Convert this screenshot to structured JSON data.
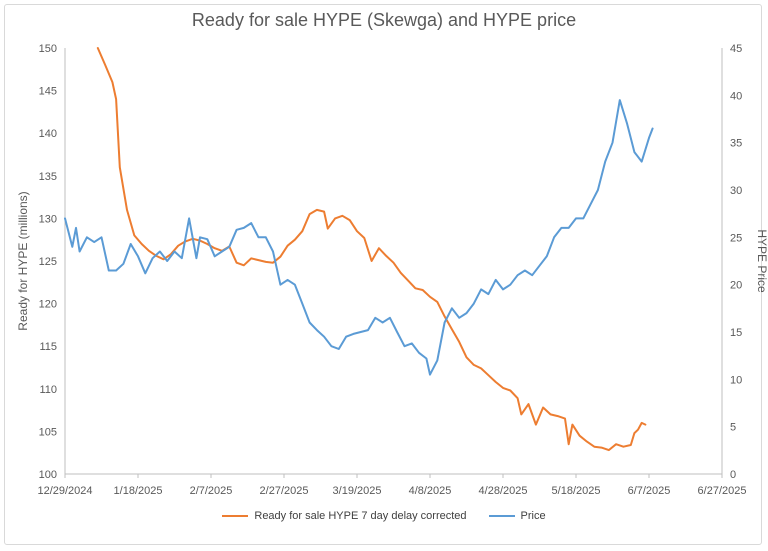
{
  "chart_data": {
    "type": "line",
    "title": "Ready for sale HYPE (Skewga) and HYPE price",
    "ylabel": "Ready for HYPE (millions)",
    "y2label": "HYPE Price",
    "ylim": [
      100,
      150
    ],
    "y2lim": [
      0,
      45
    ],
    "yticks": [
      "100",
      "105",
      "110",
      "115",
      "120",
      "125",
      "130",
      "135",
      "140",
      "145",
      "150"
    ],
    "y2ticks": [
      "0",
      "5",
      "10",
      "15",
      "20",
      "25",
      "30",
      "35",
      "40",
      "45"
    ],
    "xticks": [
      "12/29/2024",
      "1/18/2025",
      "2/7/2025",
      "2/27/2025",
      "3/19/2025",
      "4/8/2025",
      "4/28/2025",
      "5/18/2025",
      "6/7/2025",
      "6/27/2025"
    ],
    "xlim": [
      "12/29/2024",
      "6/27/2025"
    ],
    "grid": false,
    "legend_position": "bottom",
    "series": [
      {
        "name": "Ready for sale HYPE 7 day delay corrected",
        "axis": "left",
        "color": "#ed7d31",
        "points": [
          [
            "1/7/2025",
            150
          ],
          [
            "1/9/2025",
            148
          ],
          [
            "1/11/2025",
            146
          ],
          [
            "1/12/2025",
            144
          ],
          [
            "1/13/2025",
            136
          ],
          [
            "1/15/2025",
            131
          ],
          [
            "1/17/2025",
            128
          ],
          [
            "1/19/2025",
            127
          ],
          [
            "1/21/2025",
            126.2
          ],
          [
            "1/23/2025",
            125.6
          ],
          [
            "1/25/2025",
            125.2
          ],
          [
            "1/27/2025",
            125.8
          ],
          [
            "1/29/2025",
            126.8
          ],
          [
            "1/31/2025",
            127.3
          ],
          [
            "2/2/2025",
            127.6
          ],
          [
            "2/4/2025",
            127.4
          ],
          [
            "2/6/2025",
            127
          ],
          [
            "2/8/2025",
            126.5
          ],
          [
            "2/10/2025",
            126.2
          ],
          [
            "2/12/2025",
            126.7
          ],
          [
            "2/14/2025",
            124.8
          ],
          [
            "2/16/2025",
            124.5
          ],
          [
            "2/18/2025",
            125.3
          ],
          [
            "2/20/2025",
            125.1
          ],
          [
            "2/22/2025",
            124.9
          ],
          [
            "2/24/2025",
            124.8
          ],
          [
            "2/26/2025",
            125.5
          ],
          [
            "2/28/2025",
            126.8
          ],
          [
            "3/2/2025",
            127.5
          ],
          [
            "3/4/2025",
            128.5
          ],
          [
            "3/6/2025",
            130.5
          ],
          [
            "3/8/2025",
            131
          ],
          [
            "3/10/2025",
            130.8
          ],
          [
            "3/11/2025",
            128.8
          ],
          [
            "3/13/2025",
            130
          ],
          [
            "3/15/2025",
            130.3
          ],
          [
            "3/17/2025",
            129.8
          ],
          [
            "3/19/2025",
            128.5
          ],
          [
            "3/21/2025",
            127.7
          ],
          [
            "3/23/2025",
            125
          ],
          [
            "3/25/2025",
            126.5
          ],
          [
            "3/27/2025",
            125.6
          ],
          [
            "3/29/2025",
            124.8
          ],
          [
            "3/31/2025",
            123.6
          ],
          [
            "4/2/2025",
            122.7
          ],
          [
            "4/4/2025",
            121.8
          ],
          [
            "4/6/2025",
            121.6
          ],
          [
            "4/8/2025",
            120.8
          ],
          [
            "4/10/2025",
            120.2
          ],
          [
            "4/12/2025",
            118.5
          ],
          [
            "4/14/2025",
            117
          ],
          [
            "4/16/2025",
            115.5
          ],
          [
            "4/18/2025",
            113.7
          ],
          [
            "4/20/2025",
            112.8
          ],
          [
            "4/22/2025",
            112.4
          ],
          [
            "4/24/2025",
            111.6
          ],
          [
            "4/26/2025",
            110.8
          ],
          [
            "4/28/2025",
            110.1
          ],
          [
            "4/30/2025",
            109.8
          ],
          [
            "5/2/2025",
            108.9
          ],
          [
            "5/3/2025",
            107
          ],
          [
            "5/5/2025",
            108.2
          ],
          [
            "5/7/2025",
            105.8
          ],
          [
            "5/9/2025",
            107.8
          ],
          [
            "5/11/2025",
            107
          ],
          [
            "5/13/2025",
            106.8
          ],
          [
            "5/15/2025",
            106.5
          ],
          [
            "5/16/2025",
            103.5
          ],
          [
            "5/17/2025",
            105.8
          ],
          [
            "5/19/2025",
            104.5
          ],
          [
            "5/21/2025",
            103.8
          ],
          [
            "5/23/2025",
            103.2
          ],
          [
            "5/25/2025",
            103.1
          ],
          [
            "5/27/2025",
            102.8
          ],
          [
            "5/29/2025",
            103.5
          ],
          [
            "5/31/2025",
            103.2
          ],
          [
            "6/2/2025",
            103.4
          ],
          [
            "6/3/2025",
            104.8
          ],
          [
            "6/4/2025",
            105.2
          ],
          [
            "6/5/2025",
            106
          ],
          [
            "6/6/2025",
            105.8
          ]
        ]
      },
      {
        "name": "Price",
        "axis": "right",
        "color": "#5b9bd5",
        "points": [
          [
            "12/29/2024",
            27
          ],
          [
            "12/31/2024",
            24
          ],
          [
            "1/1/2025",
            26
          ],
          [
            "1/2/2025",
            23.5
          ],
          [
            "1/4/2025",
            25
          ],
          [
            "1/6/2025",
            24.5
          ],
          [
            "1/8/2025",
            25
          ],
          [
            "1/10/2025",
            21.5
          ],
          [
            "1/12/2025",
            21.5
          ],
          [
            "1/14/2025",
            22.2
          ],
          [
            "1/16/2025",
            24.3
          ],
          [
            "1/18/2025",
            23
          ],
          [
            "1/20/2025",
            21.2
          ],
          [
            "1/22/2025",
            22.8
          ],
          [
            "1/24/2025",
            23.5
          ],
          [
            "1/26/2025",
            22.5
          ],
          [
            "1/28/2025",
            23.5
          ],
          [
            "1/30/2025",
            22.8
          ],
          [
            "2/1/2025",
            27
          ],
          [
            "2/3/2025",
            22.8
          ],
          [
            "2/4/2025",
            25
          ],
          [
            "2/6/2025",
            24.8
          ],
          [
            "2/8/2025",
            23
          ],
          [
            "2/10/2025",
            23.5
          ],
          [
            "2/12/2025",
            24
          ],
          [
            "2/14/2025",
            25.8
          ],
          [
            "2/16/2025",
            26
          ],
          [
            "2/18/2025",
            26.5
          ],
          [
            "2/20/2025",
            25
          ],
          [
            "2/22/2025",
            25
          ],
          [
            "2/24/2025",
            23.5
          ],
          [
            "2/26/2025",
            20
          ],
          [
            "2/28/2025",
            20.5
          ],
          [
            "3/2/2025",
            20
          ],
          [
            "3/4/2025",
            18
          ],
          [
            "3/6/2025",
            16
          ],
          [
            "3/8/2025",
            15.2
          ],
          [
            "3/10/2025",
            14.5
          ],
          [
            "3/12/2025",
            13.5
          ],
          [
            "3/14/2025",
            13.2
          ],
          [
            "3/16/2025",
            14.5
          ],
          [
            "3/18/2025",
            14.8
          ],
          [
            "3/20/2025",
            15
          ],
          [
            "3/22/2025",
            15.2
          ],
          [
            "3/24/2025",
            16.5
          ],
          [
            "3/26/2025",
            16
          ],
          [
            "3/28/2025",
            16.5
          ],
          [
            "3/30/2025",
            15
          ],
          [
            "4/1/2025",
            13.5
          ],
          [
            "4/3/2025",
            13.8
          ],
          [
            "4/5/2025",
            12.8
          ],
          [
            "4/7/2025",
            12.2
          ],
          [
            "4/8/2025",
            10.5
          ],
          [
            "4/10/2025",
            12
          ],
          [
            "4/12/2025",
            16
          ],
          [
            "4/14/2025",
            17.5
          ],
          [
            "4/16/2025",
            16.5
          ],
          [
            "4/18/2025",
            17
          ],
          [
            "4/20/2025",
            18
          ],
          [
            "4/22/2025",
            19.5
          ],
          [
            "4/24/2025",
            19
          ],
          [
            "4/26/2025",
            20.5
          ],
          [
            "4/28/2025",
            19.5
          ],
          [
            "4/30/2025",
            20
          ],
          [
            "5/2/2025",
            21
          ],
          [
            "5/4/2025",
            21.5
          ],
          [
            "5/6/2025",
            21
          ],
          [
            "5/8/2025",
            22
          ],
          [
            "5/10/2025",
            23
          ],
          [
            "5/12/2025",
            25
          ],
          [
            "5/14/2025",
            26
          ],
          [
            "5/16/2025",
            26
          ],
          [
            "5/18/2025",
            27
          ],
          [
            "5/20/2025",
            27
          ],
          [
            "5/22/2025",
            28.5
          ],
          [
            "5/24/2025",
            30
          ],
          [
            "5/26/2025",
            33
          ],
          [
            "5/28/2025",
            35
          ],
          [
            "5/30/2025",
            39.5
          ],
          [
            "6/1/2025",
            37
          ],
          [
            "6/3/2025",
            34
          ],
          [
            "6/5/2025",
            33
          ],
          [
            "6/7/2025",
            35.5
          ],
          [
            "6/8/2025",
            36.5
          ]
        ]
      }
    ]
  }
}
